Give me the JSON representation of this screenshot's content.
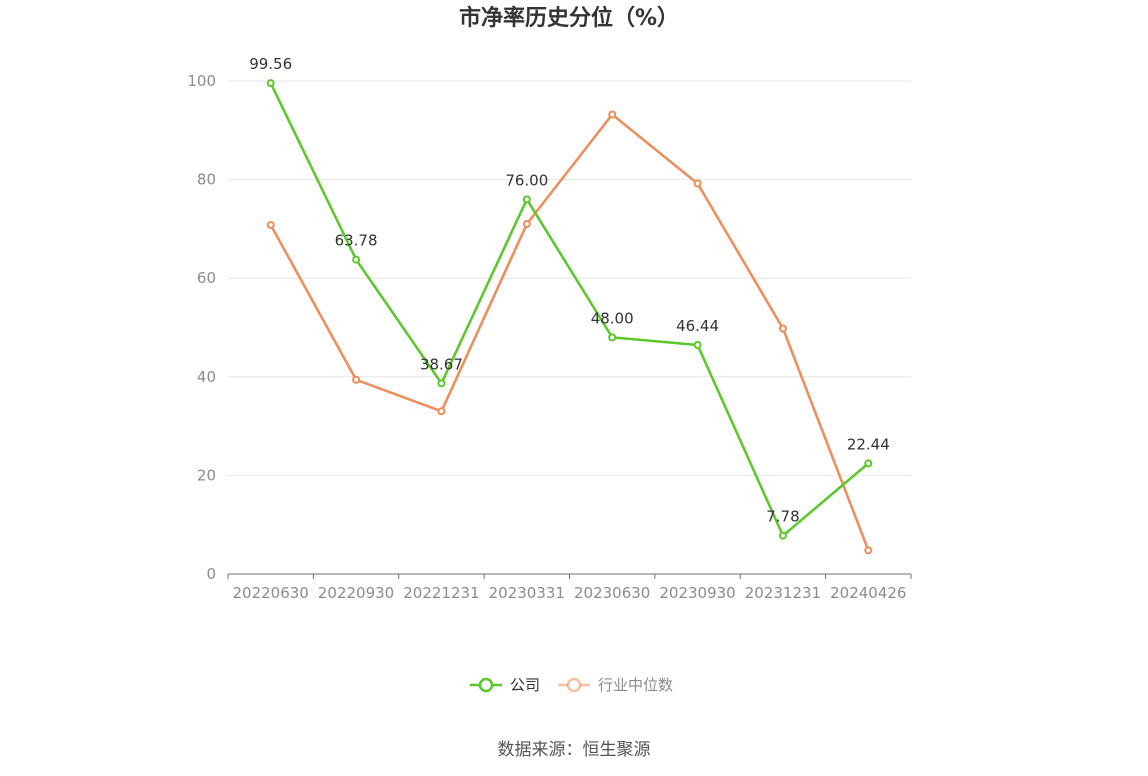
{
  "chart_data": {
    "type": "line",
    "title": "市净率历史分位（%）",
    "categories": [
      "20220630",
      "20220930",
      "20221231",
      "20230331",
      "20230630",
      "20230930",
      "20231231",
      "20240426"
    ],
    "ylim": [
      0,
      100
    ],
    "yticks": [
      0,
      20,
      40,
      60,
      80,
      100
    ],
    "grid": true,
    "legend_position": "bottom-center",
    "series": [
      {
        "name": "公司",
        "color": "#5ac72a",
        "values": [
          99.56,
          63.78,
          38.67,
          76.0,
          48.0,
          46.44,
          7.78,
          22.44
        ],
        "data_labels": [
          "99.56",
          "63.78",
          "38.67",
          "76.00",
          "48.00",
          "46.44",
          "7.78",
          "22.44"
        ]
      },
      {
        "name": "行业中位数",
        "color": "#f28b5a",
        "values": [
          70.8,
          39.4,
          33.0,
          71.0,
          93.2,
          79.2,
          49.8,
          4.8
        ]
      }
    ],
    "source": "数据来源：恒生聚源"
  }
}
